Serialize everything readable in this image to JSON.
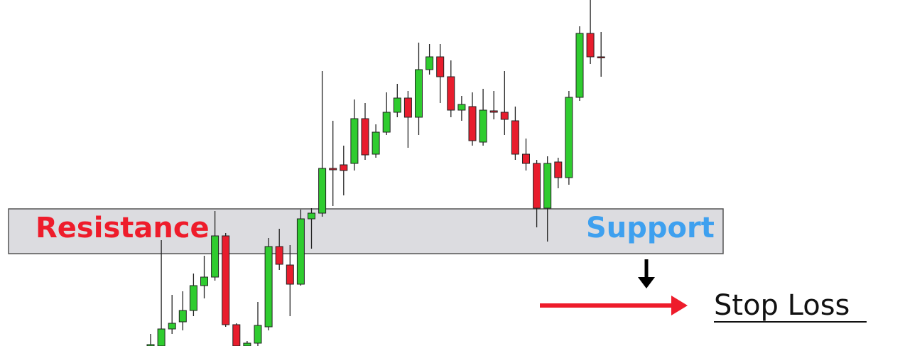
{
  "chart_data": {
    "type": "candlestick",
    "open": [
      0,
      0,
      24,
      34,
      50,
      85,
      97,
      155,
      30,
      0,
      4,
      27,
      140,
      114,
      87,
      179,
      187,
      250,
      255,
      257,
      320,
      270,
      301,
      329,
      349,
      322,
      389,
      407,
      379,
      332,
      337,
      287,
      331,
      329,
      317,
      270,
      257,
      194,
      259,
      237,
      350,
      440,
      407
    ],
    "high": [
      17,
      149,
      72,
      77,
      102,
      127,
      190,
      159,
      32,
      7,
      62,
      152,
      165,
      142,
      192,
      194,
      387,
      317,
      282,
      347,
      342,
      312,
      357,
      369,
      359,
      427,
      425,
      425,
      402,
      352,
      357,
      362,
      359,
      387,
      337,
      292,
      262,
      267,
      265,
      359,
      450,
      487,
      442
    ],
    "low": [
      0,
      0,
      17,
      22,
      42,
      67,
      92,
      27,
      0,
      0,
      0,
      22,
      107,
      42,
      85,
      137,
      182,
      197,
      212,
      247,
      262,
      265,
      297,
      322,
      279,
      297,
      382,
      342,
      322,
      317,
      282,
      282,
      319,
      297,
      262,
      247,
      167,
      147,
      222,
      227,
      345,
      397,
      379
    ],
    "close": [
      2,
      24,
      32,
      50,
      85,
      97,
      155,
      30,
      0,
      4,
      29,
      140,
      115,
      87,
      179,
      187,
      250,
      248,
      247,
      320,
      269,
      301,
      329,
      349,
      322,
      389,
      407,
      379,
      332,
      340,
      289,
      332,
      329,
      319,
      270,
      257,
      194,
      257,
      237,
      350,
      440,
      407,
      406
    ],
    "ylim": [
      0,
      487
    ],
    "up_color": "#2fcc2f",
    "down_color": "#e81d2d",
    "annotations": {
      "resistance": "Resistance",
      "support": "Support",
      "stop_loss": "Stop Loss"
    }
  }
}
